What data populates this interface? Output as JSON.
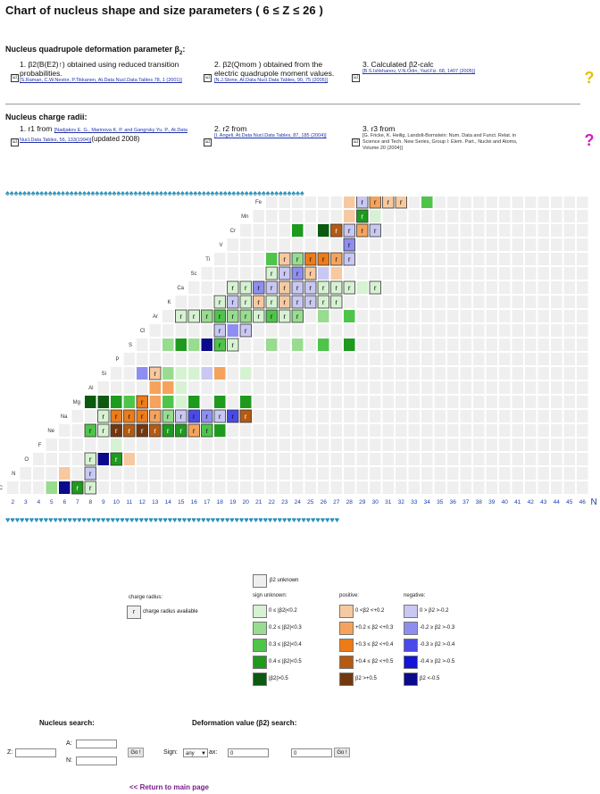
{
  "title": "Chart of nucleus shape and size parameters ( 6 ≤ Z ≤ 26 )",
  "deformation": {
    "heading": "Nucleus quadrupole deformation parameter β",
    "heading_sub": "2",
    "items": [
      {
        "title": "1. β2(B(E2)↑) obtained using reduced transition probabilities.",
        "ref": "[S.Raman, C.W.Nestor, P.Tikkanen, At.Data Nucl.Data Tables 78, 1 (2001)]"
      },
      {
        "title": "2. β2(Qmom ) obtained from the electric quadrupole moment values.",
        "ref": "[N.J.Stone, At.Data Nucl.Data Tables, 90, 75 (2005)]"
      },
      {
        "title": "3. Calculated β2-calc",
        "ref": "[B.S.Ishkhanov, V.N.Orlin, Yad.Fiz. 68, 1407 (2005)]"
      }
    ]
  },
  "radii": {
    "heading": "Nucleus charge radii:",
    "items": [
      {
        "title": "1. r1 from",
        "ref": "[Nadjakov E. G., Marinova K. P. and Gangrsky Yu. P., At.Data Nucl.Data Tables, 56, 133(1994)]",
        "extra": "(updated 2008)"
      },
      {
        "title": "2. r2 from",
        "ref": "[I. Angeli, At.Data Nucl.Data Tables, 87, 185 (2004)]"
      },
      {
        "title": "3. r3 from",
        "ref": "[G. Fricke, K. Heilig, Landolt-Bornstein: Num. Data and Funct. Relat. in Science and Tech. New Series, Group I: Elem. Part., Nuclei and Atoms, Volume 20 (2004)]"
      }
    ]
  },
  "chart_data": {
    "type": "heatmap",
    "xlabel": "N",
    "x_ticks": [
      2,
      3,
      4,
      5,
      6,
      7,
      8,
      9,
      10,
      11,
      12,
      13,
      14,
      15,
      16,
      17,
      18,
      19,
      20,
      21,
      22,
      23,
      24,
      25,
      26,
      27,
      28,
      29,
      30,
      31,
      32,
      33,
      34,
      35,
      36,
      37,
      38,
      39,
      40,
      41,
      42,
      43,
      44,
      45,
      46
    ],
    "elements": [
      {
        "symbol": "C",
        "Z": 6
      },
      {
        "symbol": "N",
        "Z": 7
      },
      {
        "symbol": "O",
        "Z": 8
      },
      {
        "symbol": "F",
        "Z": 9
      },
      {
        "symbol": "Ne",
        "Z": 10
      },
      {
        "symbol": "Na",
        "Z": 11
      },
      {
        "symbol": "Mg",
        "Z": 12
      },
      {
        "symbol": "Al",
        "Z": 13
      },
      {
        "symbol": "Si",
        "Z": 14
      },
      {
        "symbol": "P",
        "Z": 15
      },
      {
        "symbol": "S",
        "Z": 16
      },
      {
        "symbol": "Cl",
        "Z": 17
      },
      {
        "symbol": "Ar",
        "Z": 18
      },
      {
        "symbol": "K",
        "Z": 19
      },
      {
        "symbol": "Ca",
        "Z": 20
      },
      {
        "symbol": "Sc",
        "Z": 21
      },
      {
        "symbol": "Ti",
        "Z": 22
      },
      {
        "symbol": "V",
        "Z": 23
      },
      {
        "symbol": "Cr",
        "Z": 24
      },
      {
        "symbol": "Mn",
        "Z": 25
      },
      {
        "symbol": "Fe",
        "Z": 26
      }
    ],
    "row_starts": [
      {
        "Z": 6,
        "N": 2
      },
      {
        "Z": 7,
        "N": 3
      },
      {
        "Z": 8,
        "N": 4
      },
      {
        "Z": 9,
        "N": 5
      },
      {
        "Z": 10,
        "N": 6
      },
      {
        "Z": 11,
        "N": 7
      },
      {
        "Z": 12,
        "N": 8
      },
      {
        "Z": 13,
        "N": 9
      },
      {
        "Z": 14,
        "N": 10
      },
      {
        "Z": 15,
        "N": 11
      },
      {
        "Z": 16,
        "N": 12
      },
      {
        "Z": 17,
        "N": 13
      },
      {
        "Z": 18,
        "N": 14
      },
      {
        "Z": 19,
        "N": 15
      },
      {
        "Z": 20,
        "N": 16
      },
      {
        "Z": 21,
        "N": 17
      },
      {
        "Z": 22,
        "N": 18
      },
      {
        "Z": 23,
        "N": 19
      },
      {
        "Z": 24,
        "N": 20
      },
      {
        "Z": 25,
        "N": 21
      },
      {
        "Z": 26,
        "N": 22
      }
    ],
    "N_max": 46,
    "cells": [
      {
        "Z": 6,
        "N": 5,
        "c": "g2"
      },
      {
        "Z": 6,
        "N": 6,
        "c": "b5"
      },
      {
        "Z": 6,
        "N": 7,
        "c": "g4",
        "r": true
      },
      {
        "Z": 6,
        "N": 8,
        "c": "g1",
        "r": true
      },
      {
        "Z": 7,
        "N": 6,
        "c": "o1"
      },
      {
        "Z": 7,
        "N": 8,
        "c": "b1",
        "r": true
      },
      {
        "Z": 8,
        "N": 8,
        "c": "g1",
        "r": true
      },
      {
        "Z": 8,
        "N": 9,
        "c": "b5"
      },
      {
        "Z": 8,
        "N": 10,
        "c": "g4",
        "r": true
      },
      {
        "Z": 8,
        "N": 11,
        "c": "o1"
      },
      {
        "Z": 9,
        "N": 10,
        "c": "g1"
      },
      {
        "Z": 10,
        "N": 8,
        "c": "g3",
        "r": true
      },
      {
        "Z": 10,
        "N": 9,
        "c": "g1",
        "r": true
      },
      {
        "Z": 10,
        "N": 10,
        "c": "o5",
        "r": true
      },
      {
        "Z": 10,
        "N": 11,
        "c": "o4",
        "r": true
      },
      {
        "Z": 10,
        "N": 12,
        "c": "o5",
        "r": true
      },
      {
        "Z": 10,
        "N": 13,
        "c": "o4",
        "r": true
      },
      {
        "Z": 10,
        "N": 14,
        "c": "g4",
        "r": true
      },
      {
        "Z": 10,
        "N": 15,
        "c": "g4",
        "r": true
      },
      {
        "Z": 10,
        "N": 16,
        "c": "o2",
        "r": true
      },
      {
        "Z": 10,
        "N": 17,
        "c": "g3",
        "r": true
      },
      {
        "Z": 10,
        "N": 18,
        "c": "g4"
      },
      {
        "Z": 11,
        "N": 9,
        "c": "g1",
        "r": true
      },
      {
        "Z": 11,
        "N": 10,
        "c": "o3",
        "r": true
      },
      {
        "Z": 11,
        "N": 11,
        "c": "o3",
        "r": true
      },
      {
        "Z": 11,
        "N": 12,
        "c": "o3",
        "r": true
      },
      {
        "Z": 11,
        "N": 13,
        "c": "o2",
        "r": true
      },
      {
        "Z": 11,
        "N": 14,
        "c": "g2",
        "r": true
      },
      {
        "Z": 11,
        "N": 15,
        "c": "b1",
        "r": true
      },
      {
        "Z": 11,
        "N": 16,
        "c": "b3",
        "r": true
      },
      {
        "Z": 11,
        "N": 17,
        "c": "b2",
        "r": true
      },
      {
        "Z": 11,
        "N": 18,
        "c": "b1",
        "r": true
      },
      {
        "Z": 11,
        "N": 19,
        "c": "b3",
        "r": true
      },
      {
        "Z": 11,
        "N": 20,
        "c": "o4",
        "r": true
      },
      {
        "Z": 12,
        "N": 8,
        "c": "g5"
      },
      {
        "Z": 12,
        "N": 9,
        "c": "g5"
      },
      {
        "Z": 12,
        "N": 10,
        "c": "g4"
      },
      {
        "Z": 12,
        "N": 11,
        "c": "g3"
      },
      {
        "Z": 12,
        "N": 12,
        "c": "o3",
        "r": true
      },
      {
        "Z": 12,
        "N": 13,
        "c": "o2"
      },
      {
        "Z": 12,
        "N": 14,
        "c": "g3"
      },
      {
        "Z": 12,
        "N": 15,
        "c": "g1"
      },
      {
        "Z": 12,
        "N": 16,
        "c": "g4"
      },
      {
        "Z": 12,
        "N": 18,
        "c": "g4"
      },
      {
        "Z": 12,
        "N": 20,
        "c": "g4"
      },
      {
        "Z": 13,
        "N": 13,
        "c": "o2"
      },
      {
        "Z": 13,
        "N": 14,
        "c": "o2"
      },
      {
        "Z": 13,
        "N": 15,
        "c": "g1"
      },
      {
        "Z": 14,
        "N": 12,
        "c": "b2"
      },
      {
        "Z": 14,
        "N": 13,
        "c": "o1",
        "r": true
      },
      {
        "Z": 14,
        "N": 14,
        "c": "g2"
      },
      {
        "Z": 14,
        "N": 15,
        "c": "g1"
      },
      {
        "Z": 14,
        "N": 16,
        "c": "g1"
      },
      {
        "Z": 14,
        "N": 17,
        "c": "b1"
      },
      {
        "Z": 14,
        "N": 18,
        "c": "o2"
      },
      {
        "Z": 14,
        "N": 20,
        "c": "g1"
      },
      {
        "Z": 16,
        "N": 14,
        "c": "g2"
      },
      {
        "Z": 16,
        "N": 15,
        "c": "g4"
      },
      {
        "Z": 16,
        "N": 16,
        "c": "g2"
      },
      {
        "Z": 16,
        "N": 17,
        "c": "b5"
      },
      {
        "Z": 16,
        "N": 18,
        "c": "g3",
        "r": true
      },
      {
        "Z": 16,
        "N": 19,
        "c": "g1",
        "r": true
      },
      {
        "Z": 16,
        "N": 22,
        "c": "g2"
      },
      {
        "Z": 16,
        "N": 24,
        "c": "g2"
      },
      {
        "Z": 16,
        "N": 26,
        "c": "g3"
      },
      {
        "Z": 16,
        "N": 28,
        "c": "g4"
      },
      {
        "Z": 17,
        "N": 18,
        "c": "b1",
        "r": true
      },
      {
        "Z": 17,
        "N": 19,
        "c": "b2"
      },
      {
        "Z": 17,
        "N": 20,
        "c": "b1",
        "r": true
      },
      {
        "Z": 18,
        "N": 15,
        "c": "g1",
        "r": true
      },
      {
        "Z": 18,
        "N": 16,
        "c": "g1",
        "r": true
      },
      {
        "Z": 18,
        "N": 17,
        "c": "g2",
        "r": true
      },
      {
        "Z": 18,
        "N": 18,
        "c": "g3",
        "r": true
      },
      {
        "Z": 18,
        "N": 19,
        "c": "g2",
        "r": true
      },
      {
        "Z": 18,
        "N": 20,
        "c": "g2",
        "r": true
      },
      {
        "Z": 18,
        "N": 21,
        "c": "g1",
        "r": true
      },
      {
        "Z": 18,
        "N": 22,
        "c": "g3",
        "r": true
      },
      {
        "Z": 18,
        "N": 23,
        "c": "g1",
        "r": true
      },
      {
        "Z": 18,
        "N": 24,
        "c": "g2",
        "r": true
      },
      {
        "Z": 18,
        "N": 26,
        "c": "g2"
      },
      {
        "Z": 18,
        "N": 28,
        "c": "g3"
      },
      {
        "Z": 19,
        "N": 18,
        "c": "g1",
        "r": true
      },
      {
        "Z": 19,
        "N": 19,
        "c": "b1",
        "r": true
      },
      {
        "Z": 19,
        "N": 20,
        "c": "g1",
        "r": true
      },
      {
        "Z": 19,
        "N": 21,
        "c": "o1",
        "r": true
      },
      {
        "Z": 19,
        "N": 22,
        "c": "g1",
        "r": true
      },
      {
        "Z": 19,
        "N": 23,
        "c": "o1",
        "r": true
      },
      {
        "Z": 19,
        "N": 24,
        "c": "b1",
        "r": true
      },
      {
        "Z": 19,
        "N": 25,
        "c": "b1",
        "r": true
      },
      {
        "Z": 19,
        "N": 26,
        "c": "g1",
        "r": true
      },
      {
        "Z": 19,
        "N": 27,
        "c": "g1",
        "r": true
      },
      {
        "Z": 20,
        "N": 19,
        "c": "g1",
        "r": true
      },
      {
        "Z": 20,
        "N": 20,
        "c": "g1",
        "r": true
      },
      {
        "Z": 20,
        "N": 21,
        "c": "b2",
        "r": true
      },
      {
        "Z": 20,
        "N": 22,
        "c": "b1",
        "r": true
      },
      {
        "Z": 20,
        "N": 23,
        "c": "o1",
        "r": true
      },
      {
        "Z": 20,
        "N": 24,
        "c": "b1",
        "r": true
      },
      {
        "Z": 20,
        "N": 25,
        "c": "b1",
        "r": true
      },
      {
        "Z": 20,
        "N": 26,
        "c": "g1",
        "r": true
      },
      {
        "Z": 20,
        "N": 27,
        "c": "g1",
        "r": true
      },
      {
        "Z": 20,
        "N": 28,
        "c": "g1",
        "r": true
      },
      {
        "Z": 20,
        "N": 29,
        "c": "g1"
      },
      {
        "Z": 20,
        "N": 30,
        "c": "g1",
        "r": true
      },
      {
        "Z": 21,
        "N": 22,
        "c": "g1",
        "r": true
      },
      {
        "Z": 21,
        "N": 23,
        "c": "b1",
        "r": true
      },
      {
        "Z": 21,
        "N": 24,
        "c": "b2",
        "r": true
      },
      {
        "Z": 21,
        "N": 25,
        "c": "o1",
        "r": true
      },
      {
        "Z": 21,
        "N": 26,
        "c": "b1"
      },
      {
        "Z": 21,
        "N": 27,
        "c": "o1"
      },
      {
        "Z": 22,
        "N": 22,
        "c": "g3"
      },
      {
        "Z": 22,
        "N": 23,
        "c": "o1",
        "r": true
      },
      {
        "Z": 22,
        "N": 24,
        "c": "g2",
        "r": true
      },
      {
        "Z": 22,
        "N": 25,
        "c": "o3",
        "r": true
      },
      {
        "Z": 22,
        "N": 26,
        "c": "o3",
        "r": true
      },
      {
        "Z": 22,
        "N": 27,
        "c": "o2",
        "r": true
      },
      {
        "Z": 22,
        "N": 28,
        "c": "b1",
        "r": true
      },
      {
        "Z": 23,
        "N": 28,
        "c": "b2",
        "r": true
      },
      {
        "Z": 24,
        "N": 24,
        "c": "g4"
      },
      {
        "Z": 24,
        "N": 26,
        "c": "g5"
      },
      {
        "Z": 24,
        "N": 27,
        "c": "o4",
        "r": true
      },
      {
        "Z": 24,
        "N": 28,
        "c": "b1",
        "r": true
      },
      {
        "Z": 24,
        "N": 29,
        "c": "o2",
        "r": true
      },
      {
        "Z": 24,
        "N": 30,
        "c": "b1",
        "r": true
      },
      {
        "Z": 25,
        "N": 28,
        "c": "o1"
      },
      {
        "Z": 25,
        "N": 29,
        "c": "g4",
        "r": true
      },
      {
        "Z": 25,
        "N": 30,
        "c": "g1"
      },
      {
        "Z": 26,
        "N": 28,
        "c": "o1"
      },
      {
        "Z": 26,
        "N": 29,
        "c": "b1",
        "r": true
      },
      {
        "Z": 26,
        "N": 30,
        "c": "o2",
        "r": true
      },
      {
        "Z": 26,
        "N": 31,
        "c": "o1",
        "r": true
      },
      {
        "Z": 26,
        "N": 32,
        "c": "o1",
        "r": true
      },
      {
        "Z": 26,
        "N": 34,
        "c": "g3"
      }
    ]
  },
  "legend": {
    "unknown_label": "β2 unknown",
    "charge_radius_heading": "charge radius:",
    "charge_radius_label": "charge radius available",
    "r_mark": "r",
    "col_headings": [
      "sign unknown:",
      "positive:",
      "negative:"
    ],
    "colors": {
      "empty": "#efefef",
      "g1": "#d6f2d2",
      "g2": "#98dc8f",
      "g3": "#4ec54a",
      "g4": "#1e9a1e",
      "g5": "#0b5a10",
      "o1": "#f7c9a0",
      "o2": "#f5a35c",
      "o3": "#ec7b18",
      "o4": "#b45a12",
      "o5": "#713810",
      "b1": "#c8c8f2",
      "b2": "#8e8ef0",
      "b3": "#4a4aea",
      "b4": "#1414d6",
      "b5": "#0a0a8a"
    },
    "sign_unknown": [
      {
        "key": "g1",
        "label": "0 ≤ |β2|<0.2"
      },
      {
        "key": "g2",
        "label": "0.2 ≤ |β2|<0.3"
      },
      {
        "key": "g3",
        "label": "0.3 ≤ |β2|<0.4"
      },
      {
        "key": "g4",
        "label": "0.4 ≤ |β2|<0.5"
      },
      {
        "key": "g5",
        "label": "|β2|>0.5"
      }
    ],
    "positive": [
      {
        "key": "o1",
        "label": "0 <β2 <+0.2"
      },
      {
        "key": "o2",
        "label": "+0.2 ≤ β2 <+0.3"
      },
      {
        "key": "o3",
        "label": "+0.3 ≤ β2 <+0.4"
      },
      {
        "key": "o4",
        "label": "+0.4 ≤ β2 <+0.5"
      },
      {
        "key": "o5",
        "label": "β2 >+0.5"
      }
    ],
    "negative": [
      {
        "key": "b1",
        "label": "0 > β2 >-0.2"
      },
      {
        "key": "b2",
        "label": "-0.2 ≥ β2 >-0.3"
      },
      {
        "key": "b3",
        "label": "-0.3 ≥ β2 >-0.4"
      },
      {
        "key": "b4",
        "label": "-0.4 ≥ β2 >-0.5"
      },
      {
        "key": "b5",
        "label": "β2 <-0.5"
      }
    ]
  },
  "search": {
    "nucleus_heading": "Nucleus search:",
    "deformation_heading": "Deformation value (β2) search:",
    "z_label": "Z:",
    "a_label": "A:",
    "n_label": "N:",
    "go_label": "Go !",
    "sign_label": "Sign:",
    "sign_value": "any",
    "ax_label": "ax:",
    "from_value": "0",
    "to_value": "0"
  },
  "return_link": "<< Return to main page"
}
